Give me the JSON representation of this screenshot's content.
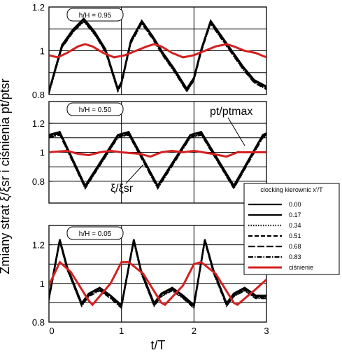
{
  "chart_data": {
    "type": "line",
    "xlabel": "t/T",
    "ylabel": "Zmiany strat ξ/ξsr i ciśnienia pt/ptsr",
    "xlim": [
      0,
      3
    ],
    "x_ticks": [
      "0",
      "1",
      "2",
      "3"
    ],
    "legend": {
      "title": "clocking kierownic x'/T",
      "placement": "right",
      "entries": [
        {
          "label": "0.00",
          "style": "solid",
          "color": "#000000"
        },
        {
          "label": "0.17",
          "style": "solid",
          "color": "#000000"
        },
        {
          "label": "0.34",
          "style": "dotted",
          "color": "#000000"
        },
        {
          "label": "0.51",
          "style": "dashed",
          "color": "#000000"
        },
        {
          "label": "0.68",
          "style": "longdash",
          "color": "#000000"
        },
        {
          "label": "0.83",
          "style": "dashdot",
          "color": "#000000"
        },
        {
          "label": "ciśnienie",
          "style": "solid",
          "color": "#d42020"
        }
      ]
    },
    "panels": [
      {
        "label": "h/H = 0.95",
        "ylim": [
          0.8,
          1.2
        ],
        "y_ticks": [
          "0.8",
          "1",
          "1.2"
        ],
        "loss": {
          "x": [
            0,
            0.18,
            0.33,
            0.48,
            0.63,
            0.78,
            0.95,
            1.0,
            1.13,
            1.28,
            1.43,
            1.58,
            1.73,
            1.9,
            2.0,
            2.1,
            2.23,
            2.38,
            2.53,
            2.68,
            2.83,
            3.0
          ],
          "y": [
            0.81,
            1.02,
            1.09,
            1.14,
            1.08,
            1.0,
            0.82,
            0.85,
            1.04,
            1.13,
            1.06,
            0.98,
            0.91,
            0.82,
            0.87,
            1.0,
            1.13,
            1.06,
            0.99,
            0.92,
            0.86,
            0.83
          ]
        },
        "pressure": {
          "x": [
            0,
            0.12,
            0.25,
            0.4,
            0.5,
            0.6,
            0.75,
            0.9,
            1.05,
            1.2,
            1.35,
            1.45,
            1.55,
            1.7,
            1.85,
            2.0,
            2.15,
            2.3,
            2.45,
            2.55,
            2.7,
            2.85,
            3.0
          ],
          "y": [
            0.98,
            0.97,
            0.99,
            1.02,
            1.03,
            1.02,
            0.99,
            0.97,
            0.98,
            1.0,
            1.02,
            1.03,
            1.02,
            0.99,
            0.97,
            0.98,
            1.0,
            1.02,
            1.03,
            1.02,
            1.0,
            0.99,
            0.97
          ]
        }
      },
      {
        "label": "h/H = 0.50",
        "ylim": [
          0.65,
          1.35
        ],
        "y_ticks": [
          "0.8",
          "1",
          "1.2"
        ],
        "loss": {
          "x": [
            0,
            0.15,
            0.5,
            0.95,
            1.1,
            1.5,
            1.95,
            2.1,
            2.55,
            2.95,
            3.0
          ],
          "y": [
            1.11,
            1.13,
            0.76,
            1.11,
            1.13,
            0.76,
            1.11,
            1.13,
            0.76,
            1.11,
            1.12
          ]
        },
        "pressure": {
          "x": [
            0,
            0.25,
            0.4,
            0.55,
            0.7,
            0.85,
            1.0,
            1.25,
            1.4,
            1.55,
            1.7,
            1.85,
            2.0,
            2.25,
            2.45,
            2.6,
            2.8,
            3.0
          ],
          "y": [
            1.0,
            1.01,
            0.99,
            0.98,
            1.0,
            1.01,
            1.0,
            0.99,
            0.97,
            1.0,
            1.01,
            1.0,
            1.01,
            0.99,
            0.97,
            1.0,
            1.0,
            1.0
          ]
        },
        "annotations": [
          "pt/ptmax",
          "ξ/ξsr"
        ]
      },
      {
        "label": "h/H = 0.05",
        "ylim": [
          0.8,
          1.3
        ],
        "y_ticks": [
          "0.8",
          "1",
          "1.2"
        ],
        "loss": {
          "x": [
            0,
            0.15,
            0.25,
            0.45,
            0.55,
            0.7,
            0.85,
            1.0,
            1.17,
            1.27,
            1.45,
            1.55,
            1.7,
            1.85,
            2.0,
            2.15,
            2.27,
            2.45,
            2.55,
            2.7,
            2.85,
            3.0
          ],
          "y": [
            0.92,
            1.22,
            1.08,
            0.89,
            0.94,
            0.97,
            0.93,
            0.88,
            1.22,
            1.06,
            0.89,
            0.94,
            0.97,
            0.93,
            0.88,
            1.22,
            1.06,
            0.89,
            0.94,
            0.97,
            0.93,
            0.93
          ]
        },
        "pressure": {
          "x": [
            0,
            0.15,
            0.3,
            0.55,
            0.6,
            0.85,
            1.0,
            1.1,
            1.3,
            1.55,
            1.6,
            1.85,
            2.0,
            2.1,
            2.3,
            2.55,
            2.6,
            2.85,
            3.0
          ],
          "y": [
            0.99,
            1.11,
            1.06,
            0.91,
            0.89,
            1.0,
            1.11,
            1.11,
            1.05,
            0.9,
            0.89,
            0.99,
            1.1,
            1.11,
            1.05,
            0.9,
            0.89,
            0.97,
            1.02
          ]
        }
      }
    ],
    "colors": {
      "loss": "#000000",
      "pressure": "#d42020",
      "grid": "#000000"
    }
  }
}
